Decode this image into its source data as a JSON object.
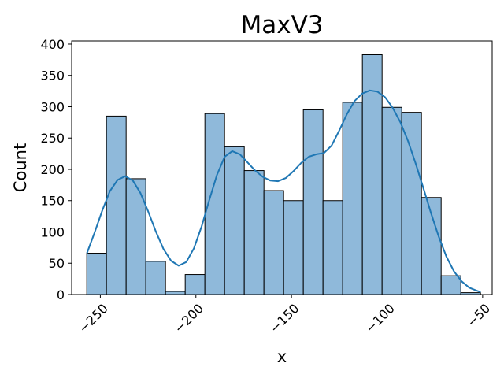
{
  "chart_data": {
    "type": "histogram",
    "title": "MaxV3",
    "xlabel": "x",
    "ylabel": "Count",
    "xlim": [
      -265,
      -45
    ],
    "ylim": [
      0,
      405
    ],
    "xticks": [
      -250,
      -200,
      -150,
      -100,
      -50
    ],
    "xtick_labels": [
      "−250",
      "−200",
      "−150",
      "−100",
      "−50"
    ],
    "xtick_rotation": 45,
    "yticks": [
      0,
      50,
      100,
      150,
      200,
      250,
      300,
      350,
      400
    ],
    "ytick_labels": [
      "0",
      "50",
      "100",
      "150",
      "200",
      "250",
      "300",
      "350",
      "400"
    ],
    "grid": false,
    "bar_color": "#8fb9da",
    "bar_edge_color": "#000000",
    "kde_color": "#1f77b4",
    "bins": [
      {
        "x0": -257.1,
        "x1": -246.8,
        "count": 66
      },
      {
        "x0": -246.8,
        "x1": -236.5,
        "count": 285
      },
      {
        "x0": -236.5,
        "x1": -226.2,
        "count": 185
      },
      {
        "x0": -226.2,
        "x1": -215.9,
        "count": 53
      },
      {
        "x0": -215.9,
        "x1": -205.6,
        "count": 5
      },
      {
        "x0": -205.6,
        "x1": -195.3,
        "count": 32
      },
      {
        "x0": -195.3,
        "x1": -185.0,
        "count": 289
      },
      {
        "x0": -185.0,
        "x1": -174.7,
        "count": 236
      },
      {
        "x0": -174.7,
        "x1": -164.4,
        "count": 198
      },
      {
        "x0": -164.4,
        "x1": -154.1,
        "count": 166
      },
      {
        "x0": -154.1,
        "x1": -143.8,
        "count": 150
      },
      {
        "x0": -143.8,
        "x1": -133.5,
        "count": 295
      },
      {
        "x0": -133.5,
        "x1": -123.2,
        "count": 150
      },
      {
        "x0": -123.2,
        "x1": -112.9,
        "count": 307
      },
      {
        "x0": -112.9,
        "x1": -102.6,
        "count": 383
      },
      {
        "x0": -102.6,
        "x1": -92.3,
        "count": 299
      },
      {
        "x0": -92.3,
        "x1": -82.0,
        "count": 291
      },
      {
        "x0": -82.0,
        "x1": -71.7,
        "count": 155
      },
      {
        "x0": -71.7,
        "x1": -61.4,
        "count": 30
      },
      {
        "x0": -61.4,
        "x1": -51.1,
        "count": 3
      }
    ],
    "kde": {
      "x": [
        -257,
        -253,
        -249,
        -245,
        -241,
        -237,
        -233,
        -229,
        -225,
        -221,
        -217,
        -213,
        -209,
        -205,
        -201,
        -197,
        -193,
        -189,
        -185,
        -181,
        -177,
        -173,
        -169,
        -165,
        -161,
        -157,
        -153,
        -149,
        -145,
        -141,
        -137,
        -133,
        -129,
        -125,
        -121,
        -117,
        -113,
        -109,
        -105,
        -101,
        -97,
        -93,
        -89,
        -85,
        -81,
        -77,
        -73,
        -69,
        -65,
        -61,
        -57,
        -53,
        -51
      ],
      "y": [
        66,
        99,
        134,
        165,
        183,
        189,
        182,
        162,
        133,
        101,
        73,
        54,
        46,
        52,
        74,
        109,
        151,
        191,
        220,
        229,
        224,
        211,
        198,
        188,
        182,
        181,
        186,
        197,
        210,
        220,
        224,
        226,
        238,
        262,
        288,
        309,
        321,
        326,
        324,
        315,
        298,
        275,
        245,
        209,
        170,
        130,
        93,
        61,
        37,
        21,
        11,
        6,
        4
      ]
    }
  }
}
